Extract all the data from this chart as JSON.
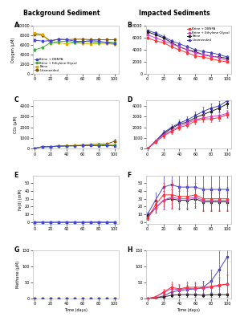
{
  "title_left": "Background Sediment",
  "title_right": "Impacted Sediments",
  "legend_labels": [
    "Brine + DBNPA",
    "Brine + Ethylene Glycol",
    "Brine",
    "Unamended"
  ],
  "colors_left": [
    "#4444cc",
    "#44aa44",
    "#ddaa00",
    "#885500"
  ],
  "colors_right": [
    "#ff3333",
    "#cc44cc",
    "#222222",
    "#4444cc"
  ],
  "panel_labels": [
    "A",
    "B",
    "C",
    "D",
    "E",
    "F",
    "G",
    "H"
  ],
  "time_sparse": [
    10,
    20,
    30,
    40,
    50,
    60,
    70,
    80,
    90,
    100
  ],
  "time_bg": [
    0,
    10,
    20,
    30,
    40,
    50,
    60,
    70,
    80,
    90,
    100
  ],
  "time_imp": [
    0,
    10,
    20,
    30,
    40,
    50,
    60,
    70,
    80,
    90,
    100
  ],
  "A_oxygen": {
    "dbnpa": [
      7000,
      6800,
      6900,
      7200,
      7100,
      6800,
      6700,
      6900,
      6800,
      6500,
      6300
    ],
    "eg": [
      5000,
      5500,
      6500,
      6700,
      6800,
      6500,
      6700,
      6700,
      6500,
      6600,
      6500
    ],
    "brine": [
      8500,
      8200,
      6300,
      6500,
      6200,
      6500,
      6300,
      6200,
      6300,
      6300,
      6100
    ],
    "unamend": [
      8200,
      8000,
      6800,
      7200,
      7100,
      7200,
      7200,
      7100,
      7100,
      7100,
      7100
    ],
    "dbnpa_err": [
      300,
      250,
      300,
      200,
      280,
      300,
      280,
      320,
      300,
      250,
      280
    ],
    "eg_err": [
      300,
      250,
      280,
      200,
      280,
      280,
      300,
      280,
      300,
      280,
      280
    ],
    "brine_err": [
      200,
      250,
      250,
      280,
      250,
      200,
      250,
      200,
      280,
      250,
      250
    ],
    "unamend_err": [
      200,
      250,
      280,
      280,
      300,
      280,
      280,
      280,
      280,
      280,
      300
    ],
    "ylim": [
      0,
      10000
    ],
    "yticks": [
      0,
      2000,
      4000,
      6000,
      8000,
      10000
    ],
    "ylabel": "Oxygen (μM)"
  },
  "B_oxygen": {
    "dbnpa": [
      6000,
      5500,
      5200,
      4500,
      4000,
      3500,
      3000,
      2800,
      2500,
      2200,
      2000
    ],
    "eg": [
      6500,
      6000,
      5500,
      5000,
      4500,
      4000,
      3500,
      3200,
      3000,
      2700,
      2200
    ],
    "brine": [
      7000,
      6500,
      6000,
      5200,
      4500,
      4000,
      3700,
      3200,
      2900,
      2800,
      2600
    ],
    "unamend": [
      7200,
      6800,
      6200,
      5500,
      5000,
      4500,
      4000,
      3700,
      3500,
      3200,
      2800
    ],
    "dbnpa_err": [
      200,
      300,
      250,
      280,
      250,
      280,
      280,
      250,
      250,
      200,
      180
    ],
    "eg_err": [
      200,
      280,
      250,
      280,
      280,
      250,
      250,
      250,
      250,
      220,
      200
    ],
    "brine_err": [
      200,
      280,
      250,
      300,
      280,
      280,
      280,
      250,
      250,
      230,
      200
    ],
    "unamend_err": [
      200,
      280,
      280,
      300,
      280,
      280,
      280,
      280,
      260,
      240,
      220
    ],
    "ylim": [
      0,
      8000
    ],
    "yticks": [
      0,
      2000,
      4000,
      6000,
      8000
    ],
    "ylabel": ""
  },
  "C_co2": {
    "dbnpa": [
      50,
      200,
      200,
      250,
      280,
      280,
      300,
      320,
      280,
      300,
      280
    ],
    "eg": [
      50,
      200,
      200,
      250,
      250,
      280,
      300,
      320,
      300,
      350,
      300
    ],
    "brine": [
      50,
      180,
      200,
      250,
      300,
      320,
      320,
      350,
      370,
      400,
      400
    ],
    "unamend": [
      50,
      200,
      220,
      260,
      280,
      300,
      350,
      400,
      420,
      450,
      700
    ],
    "dbnpa_err": [
      20,
      60,
      60,
      70,
      80,
      80,
      90,
      90,
      80,
      90,
      80
    ],
    "eg_err": [
      20,
      60,
      60,
      70,
      70,
      80,
      90,
      90,
      90,
      100,
      90
    ],
    "brine_err": [
      20,
      50,
      60,
      70,
      80,
      90,
      90,
      100,
      100,
      110,
      110
    ],
    "unamend_err": [
      20,
      60,
      60,
      75,
      80,
      90,
      100,
      110,
      120,
      130,
      200
    ],
    "ylim": [
      0,
      4500
    ],
    "yticks": [
      0,
      1000,
      2000,
      3000,
      4000
    ],
    "ylabel": "CO₂ (μM)"
  },
  "D_co2": {
    "dbnpa": [
      0,
      600,
      1200,
      1600,
      2000,
      2200,
      2600,
      2800,
      2800,
      2900,
      3200
    ],
    "eg": [
      0,
      700,
      1300,
      1700,
      2100,
      2400,
      2700,
      2900,
      3000,
      3100,
      3300
    ],
    "brine": [
      0,
      700,
      1400,
      1900,
      2300,
      2500,
      2900,
      3200,
      3500,
      3800,
      4200
    ],
    "unamend": [
      0,
      700,
      1500,
      2000,
      2400,
      2700,
      3100,
      3500,
      3800,
      4000,
      4500
    ],
    "dbnpa_err": [
      0,
      150,
      200,
      200,
      250,
      250,
      300,
      300,
      300,
      300,
      350
    ],
    "eg_err": [
      0,
      150,
      200,
      220,
      260,
      280,
      300,
      320,
      320,
      330,
      350
    ],
    "brine_err": [
      0,
      150,
      220,
      250,
      280,
      300,
      320,
      350,
      380,
      400,
      450
    ],
    "unamend_err": [
      0,
      150,
      250,
      280,
      300,
      320,
      350,
      400,
      420,
      450,
      500
    ],
    "ylim": [
      0,
      4500
    ],
    "yticks": [
      0,
      1000,
      2000,
      3000,
      4000
    ],
    "ylabel": ""
  },
  "E_fe": {
    "dbnpa": [
      0,
      0,
      0,
      0,
      0,
      0,
      0,
      0,
      0.2,
      0,
      0
    ],
    "eg": [
      0,
      0,
      0,
      0,
      0,
      0,
      0,
      0,
      0,
      0,
      0
    ],
    "brine": [
      0,
      0,
      0,
      0,
      0,
      0,
      0,
      0,
      0,
      0,
      0
    ],
    "unamend": [
      0,
      0,
      0,
      0,
      0,
      0,
      0,
      0,
      0,
      0,
      0
    ],
    "dbnpa_err": [
      0,
      0,
      0,
      0,
      0,
      0,
      0,
      0,
      0.1,
      0,
      0
    ],
    "eg_err": [
      0,
      0,
      0,
      0,
      0,
      0,
      0,
      0,
      0,
      0,
      0
    ],
    "brine_err": [
      0,
      0,
      0,
      0,
      0,
      0,
      0,
      0,
      0,
      0,
      0
    ],
    "unamend_err": [
      0,
      0,
      0,
      0,
      0,
      0,
      0,
      0,
      0,
      0,
      0
    ],
    "ylim": [
      -2,
      60
    ],
    "yticks": [
      0,
      10,
      20,
      30,
      40,
      50
    ],
    "ylabel": "Fe(II) (mM)"
  },
  "F_fe": {
    "dbnpa": [
      5,
      22,
      35,
      35,
      33,
      33,
      35,
      30,
      30,
      30,
      30
    ],
    "eg": [
      5,
      18,
      28,
      32,
      30,
      30,
      32,
      28,
      28,
      28,
      28
    ],
    "brine": [
      8,
      18,
      28,
      30,
      28,
      28,
      30,
      26,
      26,
      26,
      26
    ],
    "unamend": [
      10,
      28,
      45,
      48,
      45,
      45,
      45,
      42,
      42,
      42,
      42
    ],
    "dbnpa_err": [
      2,
      8,
      15,
      18,
      15,
      15,
      15,
      15,
      15,
      15,
      15
    ],
    "eg_err": [
      2,
      6,
      12,
      15,
      12,
      12,
      12,
      12,
      12,
      12,
      12
    ],
    "brine_err": [
      2,
      6,
      12,
      12,
      12,
      12,
      12,
      12,
      12,
      12,
      12
    ],
    "unamend_err": [
      3,
      10,
      18,
      25,
      20,
      20,
      20,
      20,
      20,
      20,
      20
    ],
    "ylim": [
      -2,
      60
    ],
    "yticks": [
      0,
      10,
      20,
      30,
      40,
      50
    ],
    "ylabel": ""
  },
  "G_methane": {
    "dbnpa": [
      0,
      0,
      0,
      0,
      0,
      0,
      0,
      0,
      0,
      0,
      0
    ],
    "eg": [
      0,
      0,
      0,
      0,
      0,
      0,
      0,
      0,
      0,
      0,
      0
    ],
    "brine": [
      0,
      0,
      0,
      0,
      0,
      0,
      0,
      0,
      0,
      0,
      0
    ],
    "unamend": [
      0,
      0,
      0,
      0,
      0,
      0,
      0,
      0,
      0,
      0,
      0
    ],
    "dbnpa_err": [
      0,
      0,
      0,
      0,
      0,
      0,
      0,
      0,
      0,
      0,
      0
    ],
    "eg_err": [
      0,
      0,
      0,
      0,
      0,
      0,
      0,
      0,
      0,
      0,
      0
    ],
    "brine_err": [
      0,
      0,
      0,
      0,
      0,
      0,
      0,
      0,
      0,
      0,
      0
    ],
    "unamend_err": [
      0,
      0,
      0,
      0,
      0,
      0,
      0,
      0,
      0,
      0,
      0
    ],
    "ylim": [
      0,
      150
    ],
    "yticks": [
      0,
      50,
      100,
      150
    ],
    "ylabel": "Methane (μM)"
  },
  "H_methane": {
    "dbnpa": [
      0,
      5,
      20,
      35,
      30,
      35,
      35,
      35,
      38,
      42,
      45
    ],
    "eg": [
      0,
      5,
      18,
      30,
      28,
      32,
      30,
      32,
      35,
      40,
      45
    ],
    "brine": [
      0,
      2,
      5,
      10,
      12,
      12,
      12,
      10,
      12,
      12,
      12
    ],
    "unamend": [
      0,
      2,
      8,
      20,
      25,
      28,
      30,
      35,
      55,
      90,
      130
    ],
    "dbnpa_err": [
      0,
      3,
      10,
      18,
      15,
      18,
      18,
      18,
      20,
      25,
      30
    ],
    "eg_err": [
      0,
      3,
      8,
      15,
      14,
      16,
      15,
      16,
      18,
      22,
      28
    ],
    "brine_err": [
      0,
      1,
      3,
      5,
      6,
      6,
      6,
      5,
      6,
      6,
      6
    ],
    "unamend_err": [
      0,
      2,
      5,
      12,
      15,
      15,
      18,
      20,
      35,
      60,
      80
    ],
    "ylim": [
      0,
      150
    ],
    "yticks": [
      0,
      50,
      100,
      150
    ],
    "ylabel": ""
  },
  "bg_color": "#ffffff",
  "xlabel": "Time (days)"
}
